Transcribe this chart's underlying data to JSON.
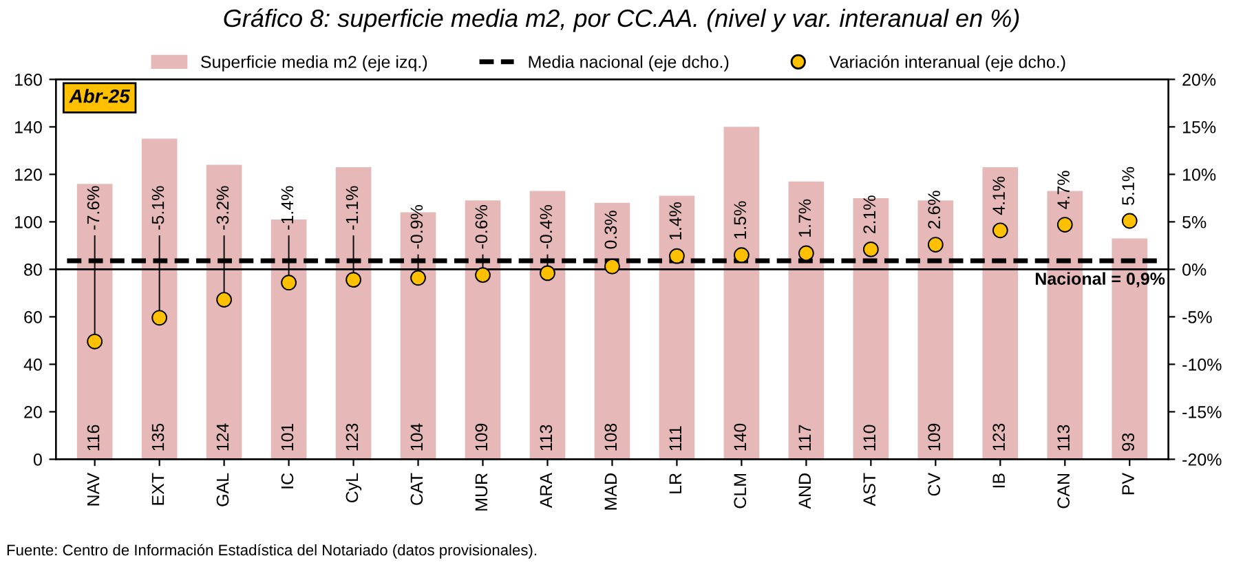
{
  "chart_data": {
    "type": "bar",
    "title": "Gráfico 8: superficie media m2, por CC.AA. (nivel y var. interanual en %)",
    "categories": [
      "NAV",
      "EXT",
      "GAL",
      "IC",
      "CyL",
      "CAT",
      "MUR",
      "ARA",
      "MAD",
      "LR",
      "CLM",
      "AND",
      "AST",
      "CV",
      "IB",
      "CAN",
      "PV"
    ],
    "series": [
      {
        "name": "Superficie media m2 (eje izq.)",
        "color": "#e6b9b8",
        "values": [
          116,
          135,
          124,
          101,
          123,
          104,
          109,
          113,
          108,
          111,
          140,
          117,
          110,
          109,
          123,
          113,
          93
        ],
        "value_labels": [
          "116",
          "135",
          "124",
          "101",
          "123",
          "104",
          "109",
          "113",
          "108",
          "111",
          "140",
          "117",
          "110",
          "109",
          "123",
          "113",
          "93"
        ]
      },
      {
        "name": "Variación interanual (eje dcho.)",
        "type": "scatter",
        "axis": "y2",
        "color": "#ffc000",
        "marker": "circle",
        "values": [
          -7.6,
          -5.1,
          -3.2,
          -1.4,
          -1.1,
          -0.9,
          -0.6,
          -0.4,
          0.3,
          1.4,
          1.5,
          1.7,
          2.1,
          2.6,
          4.1,
          4.7,
          5.1
        ],
        "value_labels": [
          "-7.6%",
          "-5.1%",
          "-3.2%",
          "-1.4%",
          "-1.1%",
          "-0.9%",
          "-0.6%",
          "-0.4%",
          "0.3%",
          "1.4%",
          "1.5%",
          "1.7%",
          "2.1%",
          "2.6%",
          "4.1%",
          "4.7%",
          "5.1%"
        ]
      }
    ],
    "ylim": [
      0,
      160
    ],
    "yticks": [
      0,
      20,
      40,
      60,
      80,
      100,
      120,
      140,
      160
    ],
    "y2lim": [
      -20,
      20
    ],
    "y2ticks": [
      {
        "value": -20,
        "label": "-20%"
      },
      {
        "value": -15,
        "label": "-15%"
      },
      {
        "value": -10,
        "label": "-10%"
      },
      {
        "value": -5,
        "label": "-5%"
      },
      {
        "value": 0,
        "label": "0%"
      },
      {
        "value": 5,
        "label": "5%"
      },
      {
        "value": 10,
        "label": "10%"
      },
      {
        "value": 15,
        "label": "15%"
      },
      {
        "value": 20,
        "label": "20%"
      }
    ],
    "ref_lines": [
      {
        "axis": "y2",
        "value": 0.9,
        "label": "Media nacional (eje dcho.)",
        "color": "#000000",
        "line_style": "dashed"
      },
      {
        "axis": "y2",
        "value": 0,
        "color": "#000000",
        "line_style": "solid"
      }
    ],
    "annotations": [
      "Abr-25",
      "Nacional = 0,9%",
      "Fuente: Centro de Información Estadística del Notariado (datos provisionales)."
    ],
    "legend": "top",
    "grid": false
  }
}
